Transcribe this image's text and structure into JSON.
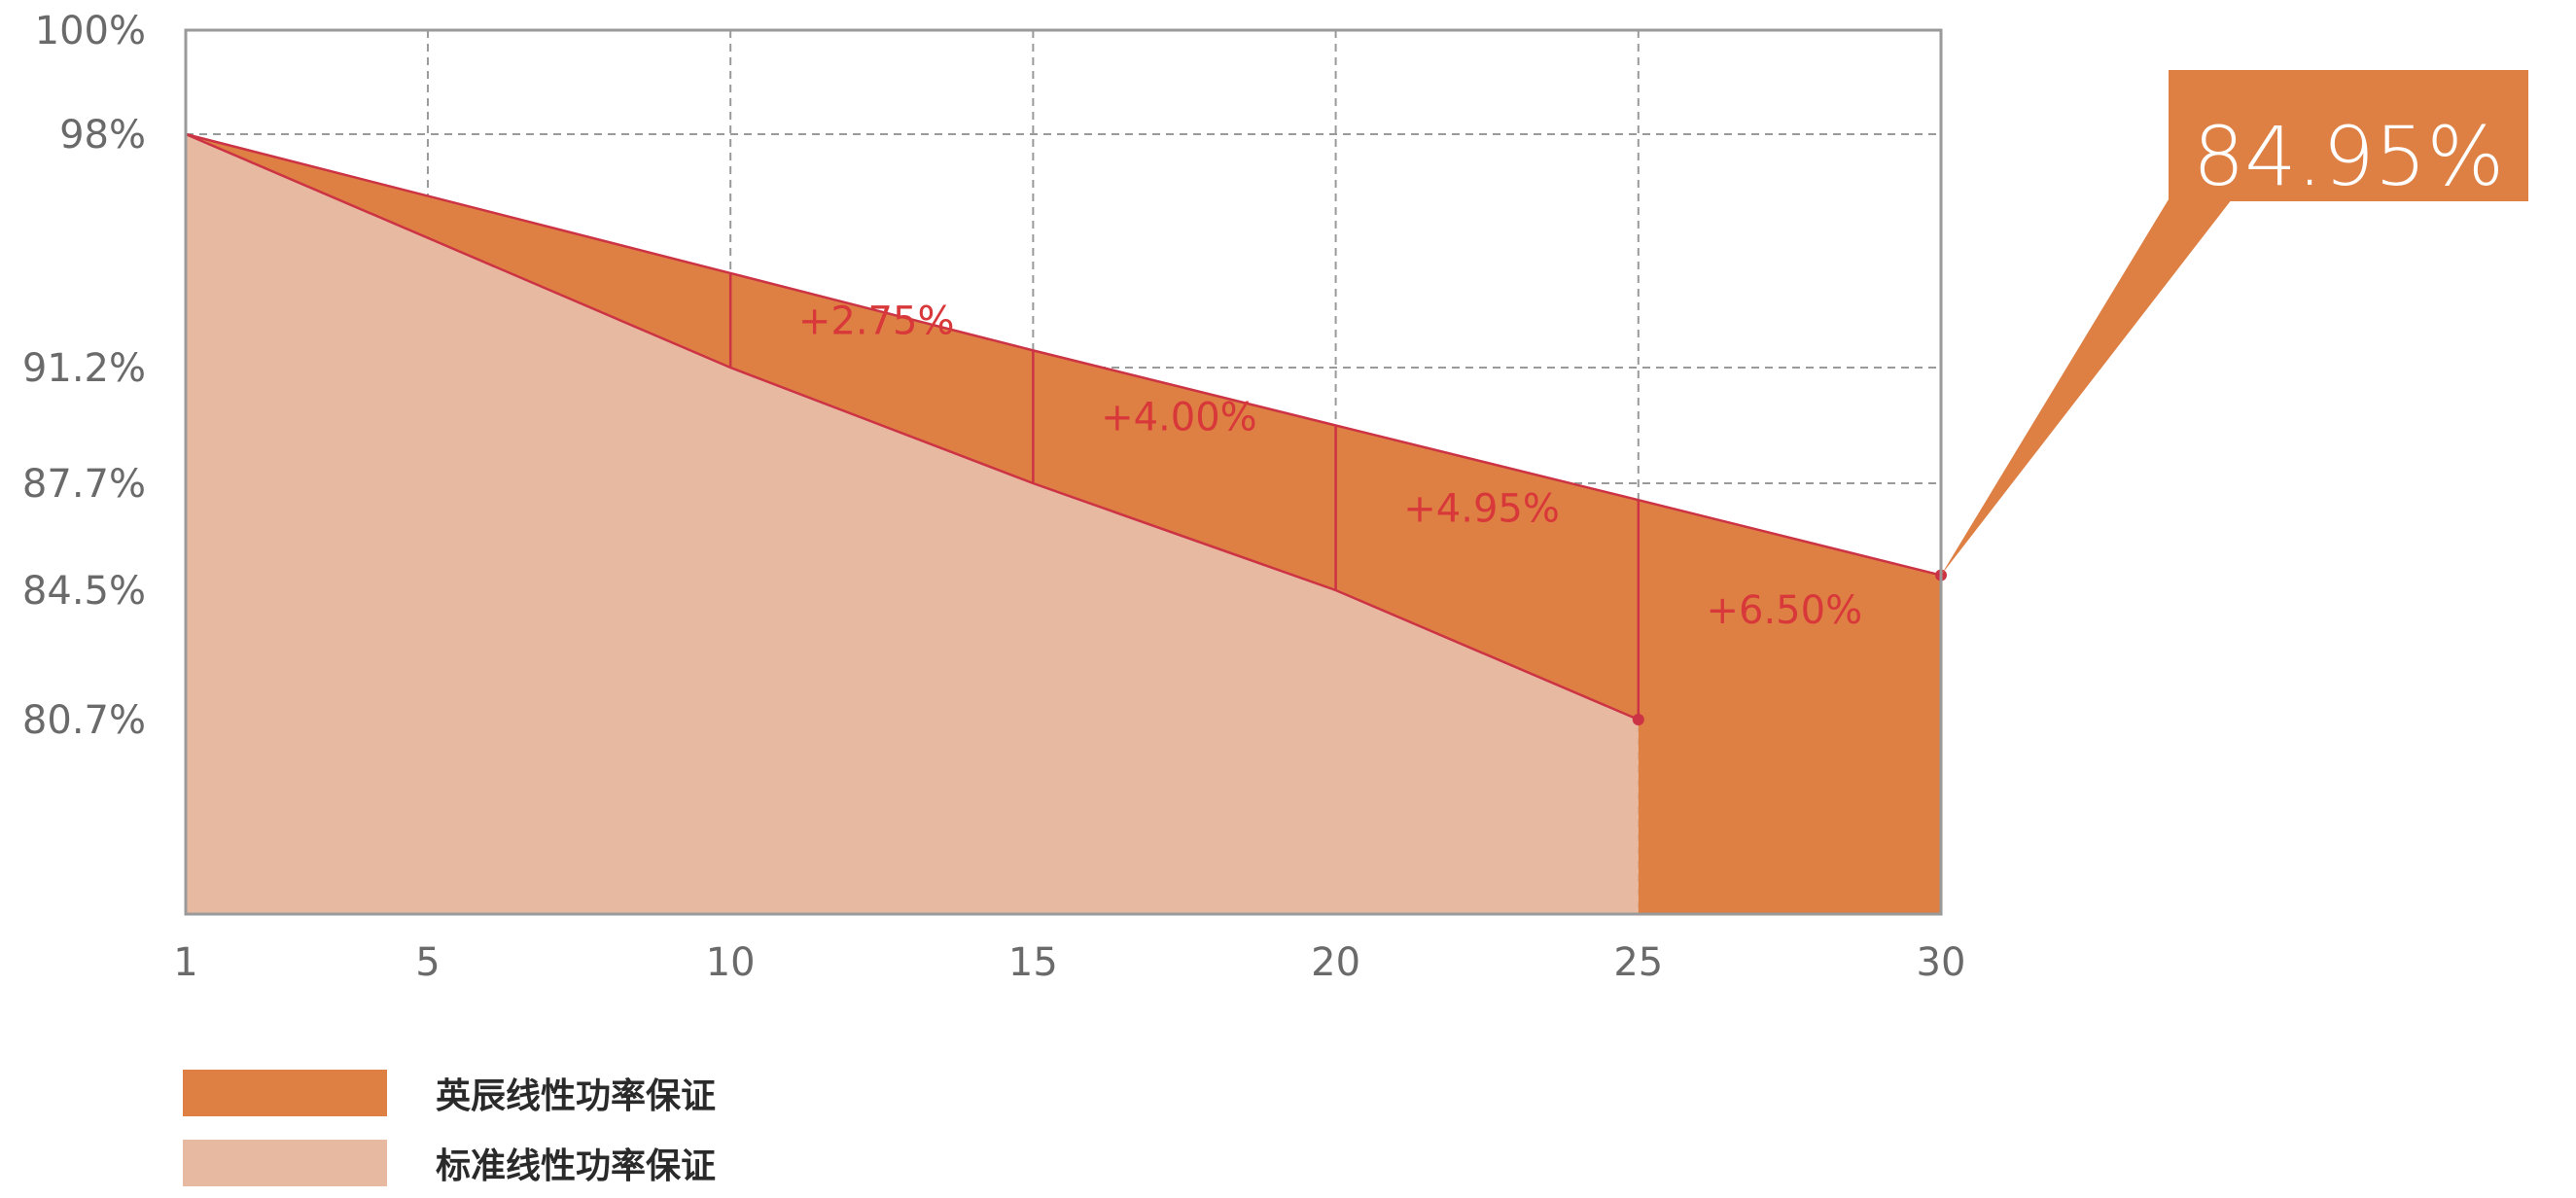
{
  "chart_data": {
    "type": "area",
    "x_ticks": [
      1,
      5,
      10,
      15,
      20,
      25,
      30
    ],
    "xlim": [
      1,
      30
    ],
    "y_ticks": [
      {
        "value": 100,
        "label": "100%"
      },
      {
        "value": 98,
        "label": "98%"
      },
      {
        "value": 91.2,
        "label": "91.2%"
      },
      {
        "value": 87.7,
        "label": "87.7%"
      },
      {
        "value": 84.5,
        "label": "84.5%"
      },
      {
        "value": 80.7,
        "label": "80.7%"
      }
    ],
    "grid": true,
    "series": [
      {
        "name": "英辰线性功率保证",
        "color": "#de7f43",
        "x": [
          1,
          10,
          15,
          20,
          25,
          30
        ],
        "y": [
          98,
          93.95,
          91.7,
          89.45,
          87.2,
          84.95
        ]
      },
      {
        "name": "标准线性功率保证",
        "color": "#e8b9a1",
        "x": [
          1,
          10,
          15,
          20,
          25
        ],
        "y": [
          98,
          91.2,
          87.7,
          84.5,
          80.7
        ]
      }
    ],
    "annotations": [
      {
        "text": "+2.75%",
        "x": 10
      },
      {
        "text": "+4.00%",
        "x": 15
      },
      {
        "text": "+4.95%",
        "x": 20
      },
      {
        "text": "+6.50%",
        "x": 25
      }
    ],
    "callout": {
      "text": "84.95%",
      "x": 30,
      "y": 84.95
    },
    "colors": {
      "line": "#cc3344",
      "grid": "#9a9a9a",
      "tick_text": "#6a6a6a"
    }
  }
}
